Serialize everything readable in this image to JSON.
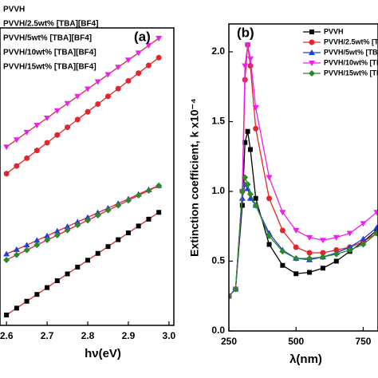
{
  "chart_data": [
    {
      "type": "line",
      "title": "(a)",
      "xlabel": "hν(eV)",
      "x": [
        2.6,
        2.625,
        2.65,
        2.675,
        2.7,
        2.725,
        2.75,
        2.775,
        2.8,
        2.825,
        2.85,
        2.875,
        2.9,
        2.925,
        2.95,
        2.975
      ],
      "xlim": [
        2.584,
        3.012
      ],
      "ylim": [
        0,
        10
      ],
      "xticks": [
        2.6,
        2.7,
        2.8,
        2.9,
        {
          "value": 3,
          "label": "3.0"
        }
      ],
      "line_color": "#e3262b",
      "series": [
        {
          "name": "PVVH",
          "color": "#000000",
          "marker": "square",
          "values": [
            0.35,
            0.58,
            0.81,
            1.04,
            1.27,
            1.5,
            1.73,
            1.96,
            2.19,
            2.42,
            2.65,
            2.88,
            3.11,
            3.34,
            3.57,
            3.8
          ]
        },
        {
          "name": "PVVH/2.5wt% [TBA][BF4]",
          "color": "#e3262b",
          "marker": "circle",
          "values": [
            5.1,
            5.36,
            5.62,
            5.88,
            6.14,
            6.4,
            6.66,
            6.92,
            7.18,
            7.44,
            7.7,
            7.96,
            8.22,
            8.48,
            8.74,
            9.0
          ]
        },
        {
          "name": "PVVH/5wt% [TBA][BF4]",
          "color": "#1f3fd6",
          "marker": "triangle",
          "values": [
            2.4,
            2.55,
            2.7,
            2.86,
            3.01,
            3.17,
            3.32,
            3.48,
            3.63,
            3.79,
            3.94,
            4.1,
            4.25,
            4.41,
            4.56,
            4.7
          ]
        },
        {
          "name": "PVVH/10wt% [TBA][BF4]",
          "color": "#f01cf0",
          "marker": "triangle-down",
          "values": [
            6.0,
            6.24,
            6.49,
            6.73,
            6.97,
            7.22,
            7.46,
            7.7,
            7.95,
            8.19,
            8.43,
            8.68,
            8.92,
            9.16,
            9.41,
            9.65
          ]
        },
        {
          "name": "PVVH/15wt% [TBA][BF4]",
          "color": "#2a8a2a",
          "marker": "diamond",
          "values": [
            2.2,
            2.37,
            2.53,
            2.7,
            2.87,
            3.03,
            3.2,
            3.37,
            3.53,
            3.7,
            3.87,
            4.03,
            4.2,
            4.37,
            4.53,
            4.7
          ]
        }
      ]
    },
    {
      "type": "line",
      "title": "(b)",
      "xlabel": "λ(nm)",
      "ylabel": "Extinction coefficient, k x10⁻⁴",
      "x": [
        250,
        275,
        300,
        310,
        320,
        330,
        350,
        400,
        450,
        500,
        550,
        600,
        650,
        700,
        750,
        800
      ],
      "xlim": [
        250,
        805
      ],
      "ylim": [
        0,
        2.2
      ],
      "xticks": [
        250,
        500,
        750
      ],
      "yticks": [
        {
          "value": 0,
          "label": "0.0"
        },
        0.5,
        {
          "value": 1,
          "label": "1.0"
        },
        1.5,
        {
          "value": 2,
          "label": "2.0"
        }
      ],
      "series": [
        {
          "name": "PVVH",
          "color": "#000000",
          "marker": "square",
          "values": [
            0.25,
            0.3,
            0.9,
            1.35,
            1.43,
            1.3,
            0.95,
            0.62,
            0.47,
            0.41,
            0.42,
            0.45,
            0.5,
            0.57,
            0.64,
            0.72
          ]
        },
        {
          "name": "PVVH/2.5wt% [TBA][BF4]",
          "color": "#e3262b",
          "marker": "circle",
          "values": [
            0.25,
            0.3,
            1.0,
            1.8,
            2.05,
            1.9,
            1.45,
            0.95,
            0.72,
            0.6,
            0.56,
            0.56,
            0.58,
            0.6,
            0.64,
            0.7
          ]
        },
        {
          "name": "PVVH/5wt% [TBA][BF4]",
          "color": "#1f3fd6",
          "marker": "triangle",
          "values": [
            0.25,
            0.3,
            0.95,
            1.05,
            1.02,
            0.95,
            0.9,
            0.7,
            0.58,
            0.52,
            0.51,
            0.53,
            0.56,
            0.6,
            0.66,
            0.74
          ]
        },
        {
          "name": "PVVH/10wt% [TBA][BF4]",
          "color": "#f01cf0",
          "marker": "triangle-down",
          "values": [
            0.25,
            0.3,
            1.0,
            1.9,
            2.05,
            1.95,
            1.6,
            1.1,
            0.85,
            0.72,
            0.67,
            0.65,
            0.67,
            0.7,
            0.77,
            0.85
          ]
        },
        {
          "name": "PVVH/15wt% [TBA][BF4]",
          "color": "#2a8a2a",
          "marker": "diamond",
          "values": [
            0.25,
            0.3,
            1.0,
            1.1,
            1.05,
            0.98,
            0.9,
            0.68,
            0.57,
            0.52,
            0.52,
            0.53,
            0.55,
            0.58,
            0.62,
            0.7
          ]
        }
      ]
    }
  ]
}
